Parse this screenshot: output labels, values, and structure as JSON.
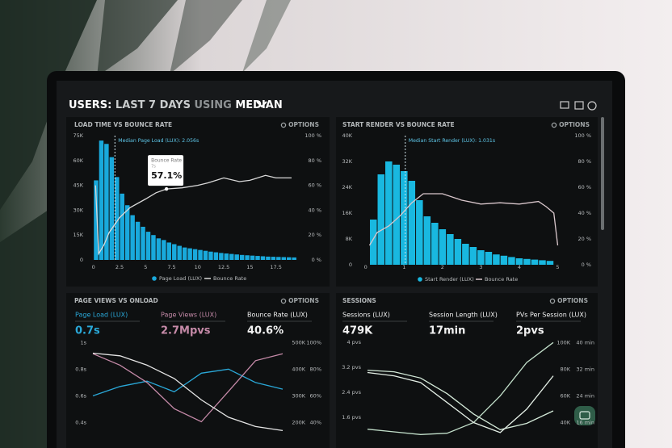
{
  "header": {
    "title_parts": [
      "USERS:",
      "LAST 7 DAYS",
      "USING",
      "MEDIAN"
    ]
  },
  "chart_data": [
    {
      "type": "histogram",
      "title": "LOAD TIME VS BOUNCE RATE",
      "options_label": "OPTIONS",
      "bins": [
        0,
        0.5,
        1,
        1.5,
        2,
        2.5,
        3,
        3.5,
        4,
        4.5,
        5,
        5.5,
        6,
        6.5,
        7,
        7.5,
        8,
        8.5,
        9,
        9.5,
        10,
        10.5,
        11,
        11.5,
        12,
        12.5,
        13,
        13.5,
        14,
        14.5,
        15,
        15.5,
        16,
        16.5,
        17,
        17.5,
        18,
        18.5,
        19,
        19.5
      ],
      "xlim": [
        -0.6,
        19.7
      ],
      "xticks": [
        0,
        2.5,
        5,
        7.5,
        10,
        12.5,
        15,
        17.5
      ],
      "ylim": [
        0,
        75000
      ],
      "yticks": [
        0,
        {
          "value": 15000,
          "label": "15K"
        },
        {
          "value": 30000,
          "label": "30K"
        },
        {
          "value": 45000,
          "label": "45K"
        },
        {
          "value": 60000,
          "label": "60K"
        },
        {
          "value": 75000,
          "label": "75K"
        }
      ],
      "y2lim": [
        0,
        100
      ],
      "y2ticks": [
        {
          "value": 0,
          "label": "0 %"
        },
        {
          "value": 20,
          "label": "20 %"
        },
        {
          "value": 40,
          "label": "40 %"
        },
        {
          "value": 60,
          "label": "60 %"
        },
        {
          "value": 80,
          "label": "80 %"
        },
        {
          "value": 100,
          "label": "100 %"
        }
      ],
      "series": [
        {
          "name": "Page Load (LUX)",
          "color": "#19a9dc",
          "values": [
            48000,
            72000,
            70000,
            62000,
            50000,
            40000,
            33000,
            27000,
            23000,
            20000,
            17000,
            15000,
            13000,
            12000,
            10500,
            9500,
            8500,
            7500,
            7000,
            6500,
            6000,
            5500,
            5000,
            4600,
            4200,
            3900,
            3600,
            3300,
            3000,
            2800,
            2600,
            2400,
            2200,
            2000,
            1900,
            1800,
            1700,
            1600,
            1500
          ]
        },
        {
          "name": "Bounce Rate",
          "color": "#d9d9d9",
          "type": "line",
          "axis": "y2",
          "x": [
            0.2,
            0.5,
            1,
            1.5,
            2.5,
            3.5,
            5,
            6,
            7,
            8.5,
            10,
            11,
            12.5,
            14,
            15,
            16.5,
            17.5,
            19
          ],
          "values": [
            60,
            5,
            12,
            22,
            34,
            42,
            49,
            54,
            57.1,
            58,
            60,
            62,
            66,
            63,
            64,
            68,
            66,
            66
          ]
        }
      ],
      "legend": true,
      "annotation": {
        "text": "Median Page Load (LUX): 2.056s",
        "x": 2.056
      },
      "tooltip": {
        "title": "Bounce Rate",
        "x": 7,
        "x_label": "7s",
        "value": 57.1,
        "value_label": "57.1%"
      }
    },
    {
      "type": "histogram",
      "title": "START RENDER VS BOUNCE RATE",
      "options_label": "OPTIONS",
      "bins": [
        0.1,
        0.3,
        0.5,
        0.7,
        0.9,
        1.1,
        1.3,
        1.5,
        1.7,
        1.9,
        2.1,
        2.3,
        2.5,
        2.7,
        2.9,
        3.1,
        3.3,
        3.5,
        3.7,
        3.9,
        4.1,
        4.3,
        4.5,
        4.7,
        4.9
      ],
      "xlim": [
        -0.1,
        5.2
      ],
      "xticks": [
        0,
        1,
        2,
        3,
        4,
        5
      ],
      "ylim": [
        0,
        40000
      ],
      "yticks": [
        0,
        {
          "value": 8000,
          "label": "8K"
        },
        {
          "value": 16000,
          "label": "16K"
        },
        {
          "value": 24000,
          "label": "24K"
        },
        {
          "value": 32000,
          "label": "32K"
        },
        {
          "value": 40000,
          "label": "40K"
        }
      ],
      "y2lim": [
        0,
        100
      ],
      "y2ticks": [
        {
          "value": 0,
          "label": "0 %"
        },
        {
          "value": 20,
          "label": "20 %"
        },
        {
          "value": 40,
          "label": "40 %"
        },
        {
          "value": 60,
          "label": "60 %"
        },
        {
          "value": 80,
          "label": "80 %"
        },
        {
          "value": 100,
          "label": "100 %"
        }
      ],
      "series": [
        {
          "name": "Start Render (LUX)",
          "color": "#19b8e0",
          "values": [
            14000,
            28000,
            32000,
            31000,
            29000,
            26000,
            20000,
            15000,
            13000,
            11000,
            9500,
            8000,
            6500,
            5500,
            4500,
            4000,
            3200,
            2800,
            2400,
            2000,
            1800,
            1600,
            1400,
            1200
          ]
        },
        {
          "name": "Bounce Rate",
          "color": "#d9c7cc",
          "type": "line",
          "axis": "y2",
          "x": [
            0.1,
            0.3,
            0.6,
            0.9,
            1.2,
            1.5,
            2,
            2.5,
            3,
            3.5,
            4,
            4.5,
            4.7,
            4.9,
            5
          ],
          "values": [
            15,
            25,
            30,
            38,
            48,
            55,
            55,
            50,
            47,
            48,
            47,
            49,
            45,
            40,
            15
          ]
        }
      ],
      "legend": true,
      "annotation": {
        "text": "Median Start Render (LUX): 1.031s",
        "x": 1.031
      }
    },
    {
      "type": "line",
      "title": "PAGE VIEWS VS ONLOAD",
      "options_label": "OPTIONS",
      "metrics": [
        {
          "label": "Page Load (LUX)",
          "value": "0.7s",
          "color": "#2aa8d8"
        },
        {
          "label": "Page Views (LUX)",
          "value": "2.7Mpvs",
          "color": "#c58aa8"
        },
        {
          "label": "Bounce Rate (LUX)",
          "value": "40.6%",
          "color": "#f2f2f2"
        }
      ],
      "categories": [
        null,
        null,
        null,
        null,
        null,
        null,
        null,
        null
      ],
      "ylim": [
        0.3,
        1.05
      ],
      "yticks": [
        {
          "value": 0.4,
          "label": "0.4s"
        },
        {
          "value": 0.6,
          "label": "0.6s"
        },
        {
          "value": 0.8,
          "label": "0.8s"
        },
        {
          "value": 1,
          "label": "1s"
        }
      ],
      "y2lim": [
        150000,
        525000
      ],
      "y2ticks": [
        {
          "value": 200000,
          "label": "200K"
        },
        {
          "value": 300000,
          "label": "300K"
        },
        {
          "value": 400000,
          "label": "400K"
        },
        {
          "value": 500000,
          "label": "500K"
        }
      ],
      "y3lim": [
        30,
        105
      ],
      "y3ticks": [
        {
          "value": 40,
          "label": "40%"
        },
        {
          "value": 60,
          "label": "60%"
        },
        {
          "value": 80,
          "label": "80%"
        },
        {
          "value": 100,
          "label": "100%"
        }
      ],
      "series": [
        {
          "color": "#2aa8d8",
          "axis": "y",
          "values": [
            0.6,
            0.67,
            0.71,
            0.63,
            0.77,
            0.8,
            0.7,
            0.65
          ]
        },
        {
          "color": "#c58aa8",
          "axis": "y2",
          "values": [
            458000,
            415000,
            350000,
            252000,
            203000,
            317000,
            432000,
            458000
          ]
        },
        {
          "color": "#e6e6e6",
          "axis": "y3",
          "values": [
            92,
            90,
            83,
            73,
            57,
            44,
            37,
            34
          ]
        }
      ]
    },
    {
      "type": "line",
      "title": "SESSIONS",
      "options_label": "OPTIONS",
      "metrics": [
        {
          "label": "Sessions (LUX)",
          "value": "479K",
          "color": "#f2f2f2"
        },
        {
          "label": "Session Length (LUX)",
          "value": "17min",
          "color": "#f2f2f2"
        },
        {
          "label": "PVs Per Session (LUX)",
          "value": "2pvs",
          "color": "#f2f2f2"
        }
      ],
      "categories": [
        null,
        null,
        null,
        null,
        null,
        null,
        null,
        null
      ],
      "ylim": [
        1,
        4.2
      ],
      "yticks": [
        {
          "value": 1.6,
          "label": "1.6 pvs"
        },
        {
          "value": 2.4,
          "label": "2.4 pvs"
        },
        {
          "value": 3.2,
          "label": "3.2 pvs"
        },
        {
          "value": 4,
          "label": "4 pvs"
        }
      ],
      "y2lim": [
        30000,
        105000
      ],
      "y2ticks": [
        {
          "value": 40000,
          "label": "40K"
        },
        {
          "value": 60000,
          "label": "60K"
        },
        {
          "value": 80000,
          "label": "80K"
        },
        {
          "value": 100000,
          "label": "100K"
        }
      ],
      "y3lim": [
        12,
        42
      ],
      "y3ticks": [
        {
          "value": 16,
          "label": "16 min"
        },
        {
          "value": 24,
          "label": "24 min"
        },
        {
          "value": 32,
          "label": "32 min"
        },
        {
          "value": 40,
          "label": "40 min"
        }
      ],
      "series": [
        {
          "color": "#d4ead9",
          "axis": "y",
          "values": [
            3.1,
            3.05,
            2.85,
            2.35,
            1.7,
            1.2,
            1.4,
            1.8
          ]
        },
        {
          "color": "#c2dfca",
          "axis": "y2",
          "values": [
            35000,
            33000,
            31000,
            32000,
            40000,
            60000,
            85000,
            100000
          ]
        },
        {
          "color": "#e4efe6",
          "axis": "y3",
          "values": [
            31,
            30,
            28,
            22,
            16,
            13,
            20,
            30
          ]
        }
      ]
    }
  ]
}
